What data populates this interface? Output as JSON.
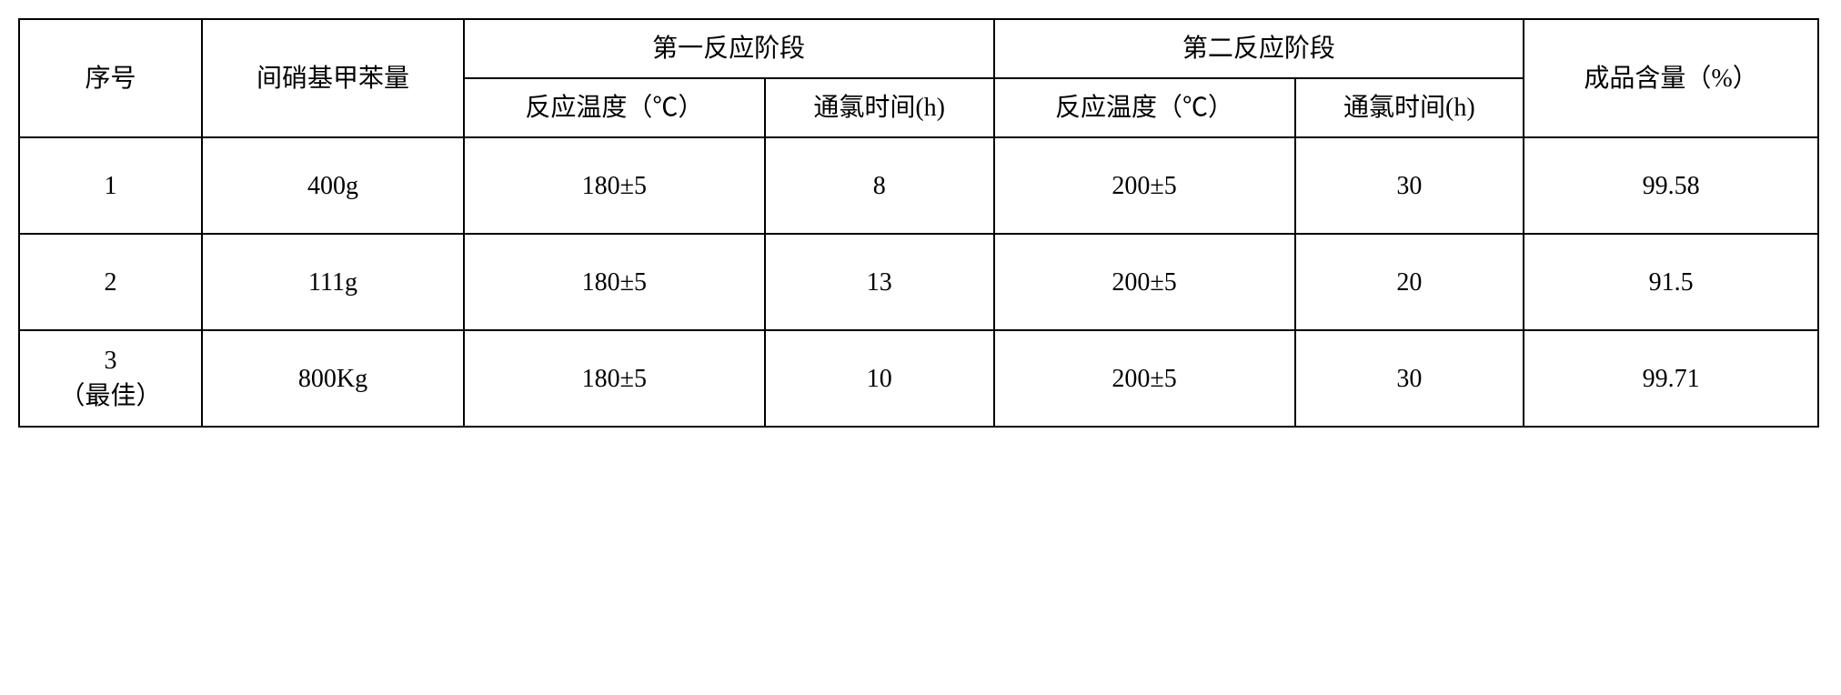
{
  "table": {
    "type": "table",
    "background_color": "#ffffff",
    "border_color": "#000000",
    "border_width": 2,
    "font_size": 28,
    "font_family": "SimSun",
    "text_align": "center",
    "headers": {
      "col1": "序号",
      "col2": "间硝基甲苯量",
      "group1": "第一反应阶段",
      "group1_sub1": "反应温度（℃）",
      "group1_sub2": "通氯时间(h)",
      "group2": "第二反应阶段",
      "group2_sub1": "反应温度（℃）",
      "group2_sub2": "通氯时间(h)",
      "col7": "成品含量（%）"
    },
    "rows": [
      {
        "seq": "1",
        "amount": "400g",
        "temp1": "180±5",
        "time1": "8",
        "temp2": "200±5",
        "time2": "30",
        "content": "99.58"
      },
      {
        "seq": "2",
        "amount": "111g",
        "temp1": "180±5",
        "time1": "13",
        "temp2": "200±5",
        "time2": "20",
        "content": "91.5"
      },
      {
        "seq": "3\n（最佳）",
        "amount": "800Kg",
        "temp1": "180±5",
        "time1": "10",
        "temp2": "200±5",
        "time2": "30",
        "content": "99.71"
      }
    ]
  }
}
